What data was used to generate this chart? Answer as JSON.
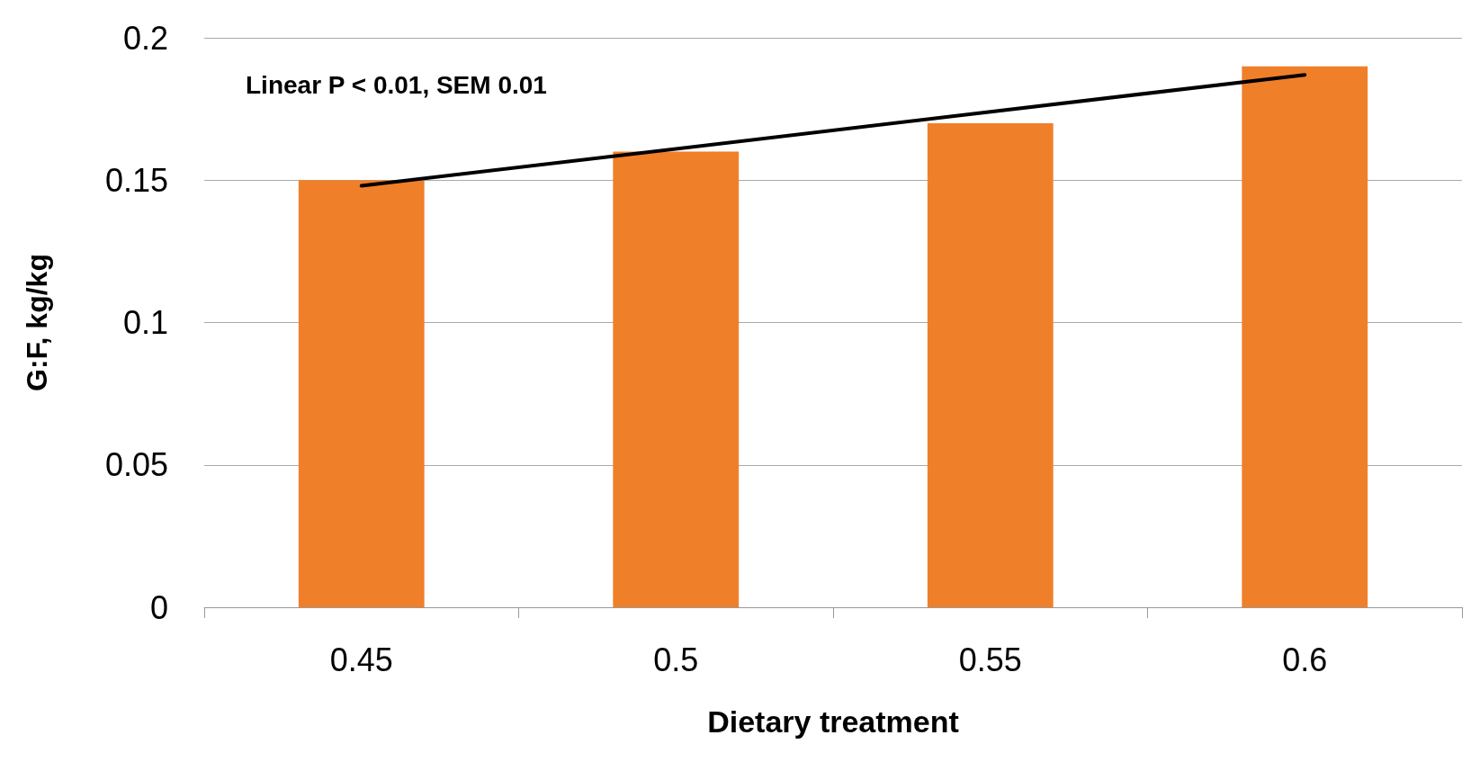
{
  "chart_data": {
    "type": "bar",
    "xlabel": "Dietary treatment",
    "ylabel": "G:F, kg/kg",
    "categories": [
      "0.45",
      "0.5",
      "0.55",
      "0.6"
    ],
    "series": [
      {
        "color": "#f07f2a",
        "values": [
          0.15,
          0.16,
          0.17,
          0.19
        ]
      },
      {
        "type": "line",
        "color": "#000000",
        "x": [
          "0.45",
          "0.6"
        ],
        "values": [
          0.148,
          0.187
        ]
      }
    ],
    "ylim": [
      0,
      0.2
    ],
    "yticks": [
      0,
      0.05,
      0.1,
      0.15,
      0.2
    ],
    "grid": "y",
    "marker": "none",
    "annotations": [
      "Linear P < 0.01, SEM 0.01"
    ]
  }
}
